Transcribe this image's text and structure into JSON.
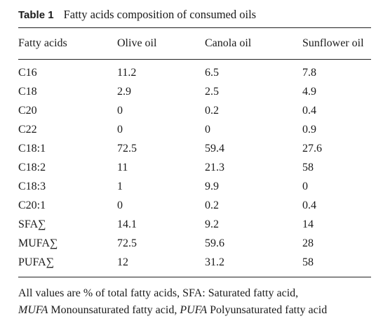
{
  "caption": {
    "label": "Table 1",
    "title": "Fatty acids composition of consumed oils"
  },
  "table": {
    "headers": [
      "Fatty acids",
      "Olive oil",
      "Canola oil",
      "Sunflower oil"
    ],
    "rows": [
      [
        "C16",
        "11.2",
        "6.5",
        "7.8"
      ],
      [
        "C18",
        "2.9",
        "2.5",
        "4.9"
      ],
      [
        "C20",
        "0",
        "0.2",
        "0.4"
      ],
      [
        "C22",
        "0",
        "0",
        "0.9"
      ],
      [
        "C18:1",
        "72.5",
        "59.4",
        "27.6"
      ],
      [
        "C18:2",
        "11",
        "21.3",
        "58"
      ],
      [
        "C18:3",
        "1",
        "9.9",
        "0"
      ],
      [
        "C20:1",
        "0",
        "0.2",
        "0.4"
      ],
      [
        "SFA∑",
        "14.1",
        "9.2",
        "14"
      ],
      [
        "MUFA∑",
        "72.5",
        "59.6",
        "28"
      ],
      [
        "PUFA∑",
        "12",
        "31.2",
        "58"
      ]
    ]
  },
  "footnote": {
    "line1": "All values are % of total fatty acids, SFA: Saturated fatty acid,",
    "mufa_abbr": "MUFA",
    "mufa_text": " Monounsaturated fatty acid, ",
    "pufa_abbr": "PUFA",
    "pufa_text": " Polyunsaturated fatty acid"
  }
}
